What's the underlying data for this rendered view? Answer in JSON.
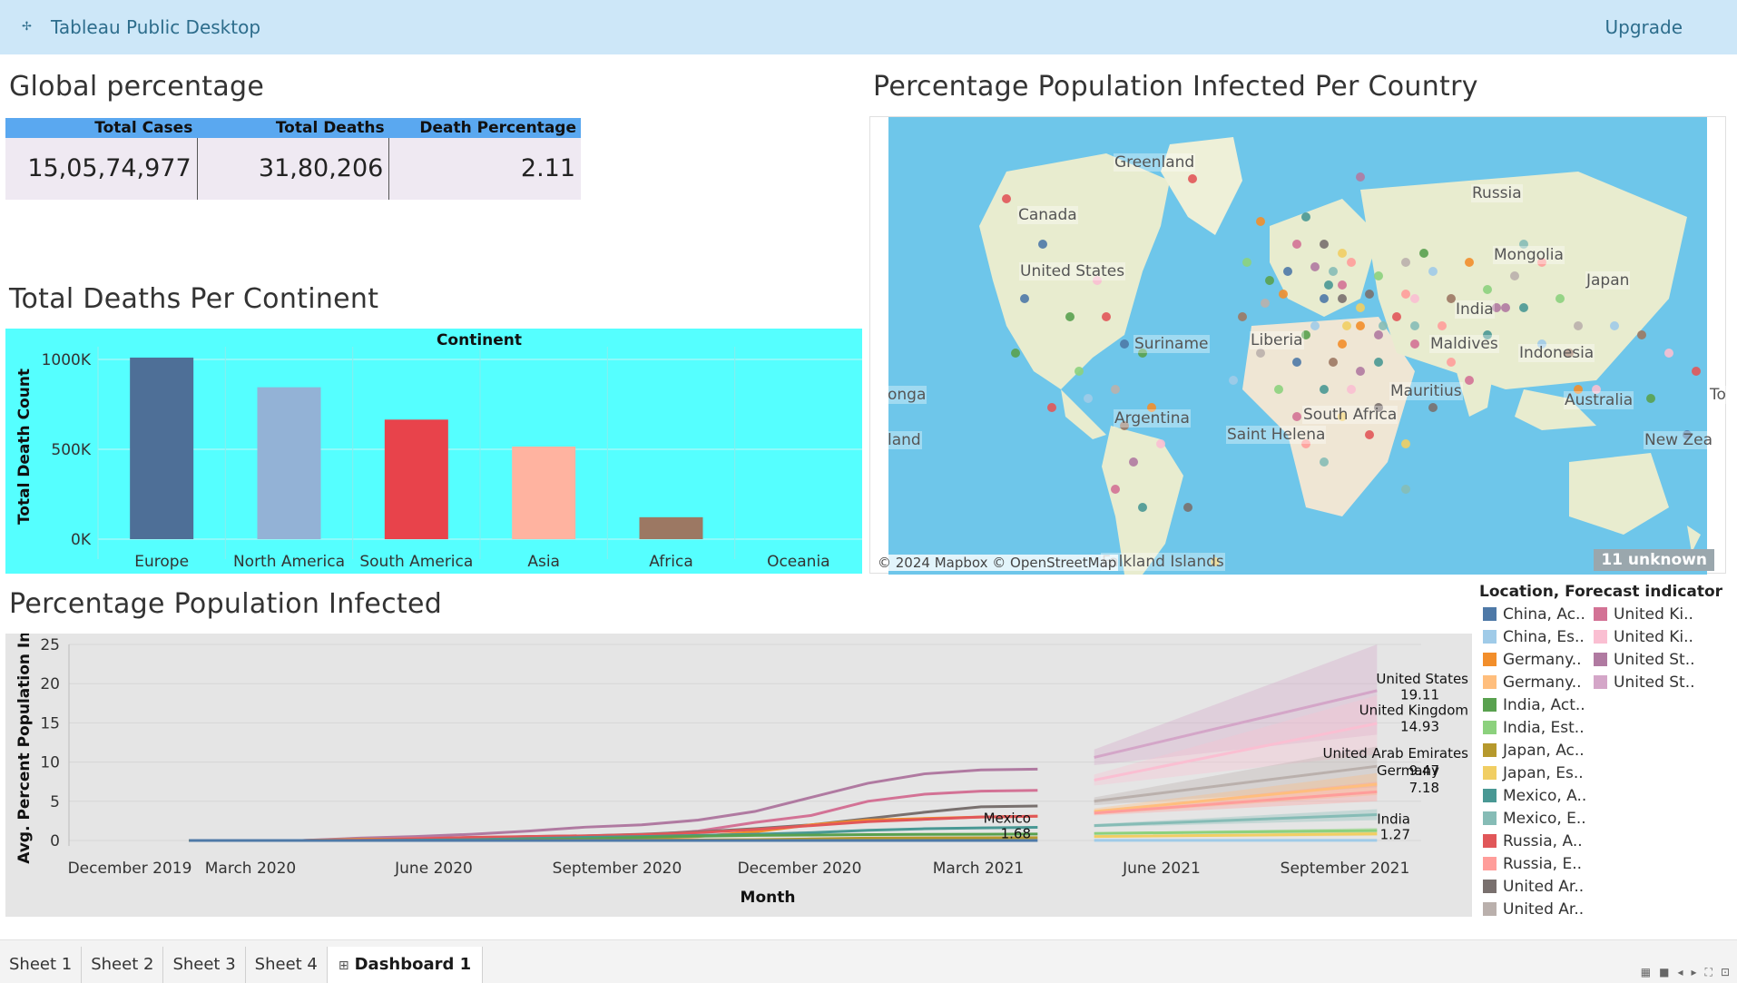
{
  "app": {
    "title": "Tableau Public Desktop",
    "upgrade": "Upgrade"
  },
  "kpi": {
    "title": "Global percentage",
    "headers": [
      "Total Cases",
      "Total Deaths",
      "Death Percentage"
    ],
    "values": [
      "15,05,74,977",
      "31,80,206",
      "2.11"
    ]
  },
  "bar_title": "Total Deaths Per Continent",
  "map": {
    "title": "Percentage Population Infected Per Country",
    "labels": [
      "Greenland",
      "Canada",
      "United States",
      "Russia",
      "Mongolia",
      "Japan",
      "India",
      "Maldives",
      "Indonesia",
      "Australia",
      "Suriname",
      "Liberia",
      "Argentina",
      "South Africa",
      "Mauritius",
      "Saint Helena",
      "Falkland Islands",
      "onga",
      "land",
      "New Zea",
      "To"
    ],
    "attribution": "© 2024 Mapbox © OpenStreetMap",
    "unknown": "11 unknown"
  },
  "line_title": "Percentage Population Infected",
  "legend": {
    "title": "Location, Forecast indicator",
    "col1": [
      {
        "label": "China, Ac..",
        "color": "#4e79a7"
      },
      {
        "label": "China, Es..",
        "color": "#a0cbe8"
      },
      {
        "label": "Germany..",
        "color": "#f28e2b"
      },
      {
        "label": "Germany..",
        "color": "#ffbe7d"
      },
      {
        "label": "India, Act..",
        "color": "#59a14f"
      },
      {
        "label": "India, Est..",
        "color": "#8cd17d"
      },
      {
        "label": "Japan, Ac..",
        "color": "#b6992d"
      },
      {
        "label": "Japan, Es..",
        "color": "#f1ce63"
      },
      {
        "label": "Mexico, A..",
        "color": "#499894"
      },
      {
        "label": "Mexico, E..",
        "color": "#86bcb6"
      },
      {
        "label": "Russia, A..",
        "color": "#e15759"
      },
      {
        "label": "Russia, E..",
        "color": "#ff9d9a"
      },
      {
        "label": "United Ar..",
        "color": "#79706e"
      },
      {
        "label": "United Ar..",
        "color": "#bab0ac"
      }
    ],
    "col2": [
      {
        "label": "United Ki..",
        "color": "#d37295"
      },
      {
        "label": "United Ki..",
        "color": "#fabfd2"
      },
      {
        "label": "United St..",
        "color": "#b07aa1"
      },
      {
        "label": "United St..",
        "color": "#d4a6c8"
      }
    ]
  },
  "tabs": [
    "Sheet 1",
    "Sheet 2",
    "Sheet 3",
    "Sheet 4",
    "Dashboard 1"
  ],
  "chart_data": [
    {
      "type": "bar",
      "title": "Continent",
      "ylabel": "Total Death Count",
      "xlabel": "",
      "categories": [
        "Europe",
        "North America",
        "South America",
        "Asia",
        "Africa",
        "Oceania"
      ],
      "values": [
        1010000,
        845000,
        665000,
        515000,
        122000,
        0
      ],
      "colors": [
        "#4e6f97",
        "#93b2d6",
        "#e8434b",
        "#ffb3a0",
        "#9c7863",
        "#cccccc"
      ],
      "ylim": [
        0,
        1030000
      ],
      "yticks": [
        0,
        500000,
        1000000
      ],
      "ytick_labels": [
        "0K",
        "500K",
        "1000K"
      ],
      "grid": true
    },
    {
      "type": "line",
      "title": "",
      "xlabel": "Month",
      "ylabel": "Avg. Percent Population Inf..",
      "ylim": [
        0,
        25
      ],
      "yticks": [
        0,
        5,
        10,
        15,
        20,
        25
      ],
      "xticks": [
        "December 2019",
        "March 2020",
        "June 2020",
        "September 2020",
        "December 2020",
        "March 2021",
        "June 2021",
        "September 2021"
      ],
      "x_actual": [
        "2020-01",
        "2020-02",
        "2020-03",
        "2020-04",
        "2020-05",
        "2020-06",
        "2020-07",
        "2020-08",
        "2020-09",
        "2020-10",
        "2020-11",
        "2020-12",
        "2021-01",
        "2021-02",
        "2021-03",
        "2021-04"
      ],
      "x_forecast": [
        "2021-05",
        "2021-10"
      ],
      "series": [
        {
          "name": "United States",
          "color": "#b07aa1",
          "actual": [
            0,
            0,
            0,
            0.3,
            0.5,
            0.8,
            1.2,
            1.7,
            2.0,
            2.6,
            3.7,
            5.5,
            7.3,
            8.5,
            9.0,
            9.1
          ],
          "forecast": [
            10.6,
            19.11
          ],
          "band": [
            [
              9.6,
              11.6
            ],
            [
              13.5,
              25.0
            ]
          ],
          "band_color": "#d4a6c8",
          "label": "United States",
          "value_label": "19.11"
        },
        {
          "name": "United Kingdom",
          "color": "#d37295",
          "actual": [
            0,
            0,
            0,
            0.1,
            0.3,
            0.4,
            0.45,
            0.5,
            0.7,
            1.2,
            2.3,
            3.2,
            5.0,
            5.9,
            6.3,
            6.4
          ],
          "forecast": [
            7.7,
            14.93
          ],
          "band": [
            [
              7.0,
              8.4
            ],
            [
              11.0,
              18.5
            ]
          ],
          "band_color": "#fabfd2",
          "label": "United Kingdom",
          "value_label": "14.93"
        },
        {
          "name": "United Arab Emirates",
          "color": "#79706e",
          "actual": [
            0,
            0,
            0,
            0.05,
            0.1,
            0.3,
            0.5,
            0.6,
            0.8,
            1.1,
            1.5,
            2.0,
            2.8,
            3.6,
            4.3,
            4.4
          ],
          "forecast": [
            5.0,
            9.47
          ],
          "band": [
            [
              4.5,
              5.5
            ],
            [
              6.8,
              12.0
            ]
          ],
          "band_color": "#bab0ac",
          "label": "United Arab Emirates",
          "value_label": "9.47"
        },
        {
          "name": "Germany",
          "color": "#f28e2b",
          "actual": [
            0,
            0,
            0,
            0.15,
            0.2,
            0.2,
            0.22,
            0.25,
            0.3,
            0.5,
            1.1,
            2.0,
            2.6,
            2.8,
            3.0,
            3.1
          ],
          "forecast": [
            3.7,
            7.18
          ],
          "band": [
            [
              3.3,
              4.1
            ],
            [
              5.8,
              8.6
            ]
          ],
          "band_color": "#ffbe7d",
          "label": "Germany",
          "value_label": "7.18"
        },
        {
          "name": "Russia",
          "color": "#e15759",
          "actual": [
            0,
            0,
            0,
            0.05,
            0.2,
            0.4,
            0.5,
            0.6,
            0.75,
            1.0,
            1.4,
            1.9,
            2.4,
            2.7,
            3.0,
            3.1
          ],
          "forecast": [
            3.5,
            6.2
          ],
          "band": [
            [
              3.2,
              3.8
            ],
            [
              5.0,
              7.5
            ]
          ],
          "band_color": "#ff9d9a",
          "label": "",
          "value_label": ""
        },
        {
          "name": "Mexico",
          "color": "#499894",
          "actual": [
            0,
            0,
            0,
            0,
            0.05,
            0.1,
            0.25,
            0.4,
            0.5,
            0.65,
            0.8,
            1.0,
            1.3,
            1.5,
            1.6,
            1.68
          ],
          "forecast": [
            1.9,
            3.3
          ],
          "band": [
            [
              1.7,
              2.1
            ],
            [
              2.6,
              4.0
            ]
          ],
          "band_color": "#86bcb6",
          "label": "Mexico",
          "value_label": "1.68"
        },
        {
          "name": "India",
          "color": "#59a14f",
          "actual": [
            0,
            0,
            0,
            0,
            0,
            0.02,
            0.1,
            0.2,
            0.4,
            0.55,
            0.65,
            0.7,
            0.75,
            0.78,
            0.8,
            0.82
          ],
          "forecast": [
            0.9,
            1.27
          ],
          "band": [
            [
              0.8,
              1.0
            ],
            [
              1.0,
              1.6
            ]
          ],
          "band_color": "#8cd17d",
          "label": "India",
          "value_label": "1.27"
        },
        {
          "name": "Japan",
          "color": "#b6992d",
          "actual": [
            0,
            0,
            0,
            0,
            0,
            0,
            0.02,
            0.05,
            0.05,
            0.07,
            0.1,
            0.2,
            0.3,
            0.33,
            0.35,
            0.36
          ],
          "forecast": [
            0.5,
            0.85
          ],
          "band": [
            [
              0.4,
              0.6
            ],
            [
              0.6,
              1.1
            ]
          ],
          "band_color": "#f1ce63",
          "label": "",
          "value_label": ""
        },
        {
          "name": "China",
          "color": "#4e79a7",
          "actual": [
            0,
            0.005,
            0.006,
            0.006,
            0.006,
            0.006,
            0.006,
            0.006,
            0.006,
            0.006,
            0.006,
            0.006,
            0.007,
            0.007,
            0.007,
            0.007
          ],
          "forecast": [
            0.01,
            0.01
          ],
          "band": [
            [
              0.0,
              0.02
            ],
            [
              0.0,
              0.03
            ]
          ],
          "band_color": "#a0cbe8",
          "label": "",
          "value_label": ""
        }
      ]
    }
  ]
}
